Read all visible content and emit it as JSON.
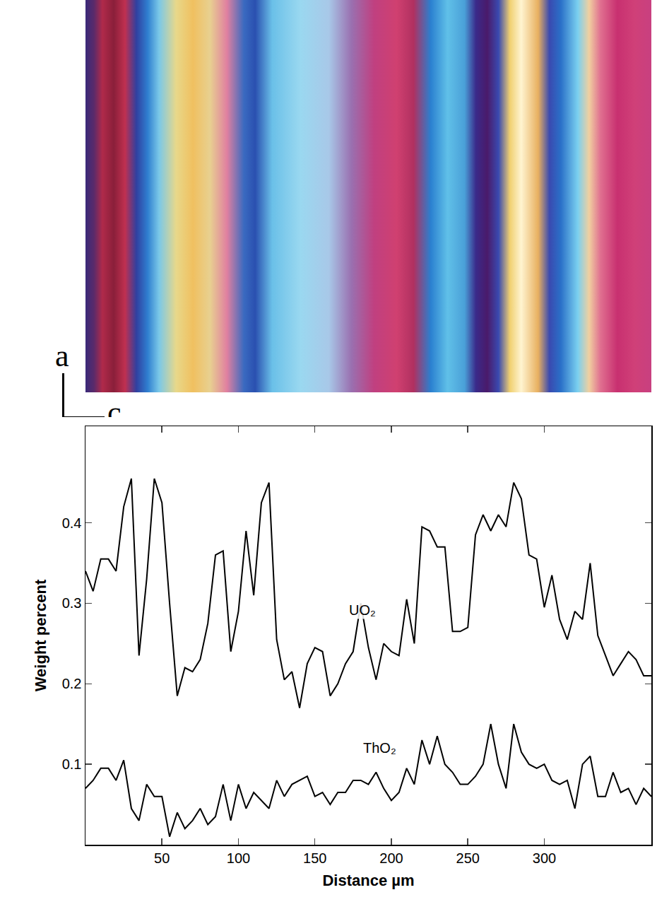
{
  "chart_data": {
    "type": "line",
    "xlabel": "Distance µm",
    "ylabel": "Weight percent",
    "x": [
      0,
      5,
      10,
      15,
      20,
      25,
      30,
      35,
      40,
      45,
      50,
      55,
      60,
      65,
      70,
      75,
      80,
      85,
      90,
      95,
      100,
      105,
      110,
      115,
      120,
      125,
      130,
      135,
      140,
      145,
      150,
      155,
      160,
      165,
      170,
      175,
      180,
      185,
      190,
      195,
      200,
      205,
      210,
      215,
      220,
      225,
      230,
      235,
      240,
      245,
      250,
      255,
      260,
      265,
      270,
      275,
      280,
      285,
      290,
      295,
      300,
      305,
      310,
      315,
      320,
      325,
      330,
      335,
      340,
      345,
      350,
      355,
      360,
      365,
      370
    ],
    "series": [
      {
        "name": "UO₂",
        "color": "#000000",
        "values": [
          0.34,
          0.315,
          0.355,
          0.355,
          0.34,
          0.42,
          0.455,
          0.235,
          0.33,
          0.455,
          0.425,
          0.3,
          0.185,
          0.22,
          0.215,
          0.23,
          0.275,
          0.36,
          0.365,
          0.24,
          0.29,
          0.39,
          0.31,
          0.425,
          0.45,
          0.255,
          0.205,
          0.215,
          0.17,
          0.225,
          0.245,
          0.24,
          0.185,
          0.2,
          0.225,
          0.24,
          0.3,
          0.245,
          0.205,
          0.25,
          0.24,
          0.235,
          0.305,
          0.25,
          0.395,
          0.39,
          0.37,
          0.37,
          0.265,
          0.265,
          0.27,
          0.385,
          0.41,
          0.39,
          0.41,
          0.395,
          0.45,
          0.43,
          0.36,
          0.355,
          0.295,
          0.335,
          0.28,
          0.255,
          0.29,
          0.28,
          0.35,
          0.26,
          0.235,
          0.21,
          0.225,
          0.24,
          0.23,
          0.21,
          0.21
        ]
      },
      {
        "name": "ThO₂",
        "color": "#000000",
        "values": [
          0.07,
          0.08,
          0.095,
          0.095,
          0.08,
          0.105,
          0.045,
          0.03,
          0.075,
          0.06,
          0.06,
          0.01,
          0.04,
          0.02,
          0.03,
          0.045,
          0.025,
          0.035,
          0.075,
          0.03,
          0.075,
          0.045,
          0.065,
          0.055,
          0.045,
          0.08,
          0.06,
          0.075,
          0.08,
          0.085,
          0.06,
          0.065,
          0.05,
          0.065,
          0.065,
          0.08,
          0.08,
          0.075,
          0.09,
          0.07,
          0.055,
          0.065,
          0.095,
          0.075,
          0.13,
          0.1,
          0.135,
          0.1,
          0.09,
          0.075,
          0.075,
          0.085,
          0.1,
          0.15,
          0.1,
          0.07,
          0.15,
          0.115,
          0.1,
          0.095,
          0.1,
          0.08,
          0.075,
          0.08,
          0.045,
          0.1,
          0.11,
          0.06,
          0.06,
          0.09,
          0.065,
          0.07,
          0.05,
          0.07,
          0.06
        ]
      }
    ],
    "xlim": [
      0,
      370
    ],
    "xticks": [
      50,
      100,
      150,
      200,
      250,
      300
    ],
    "ylim": [
      0,
      0.52
    ],
    "yticks": [
      0.1,
      0.2,
      0.3,
      0.4
    ],
    "grid": false
  },
  "micrograph": {
    "axis_labels": {
      "vertical": "a",
      "horizontal": "c"
    }
  }
}
